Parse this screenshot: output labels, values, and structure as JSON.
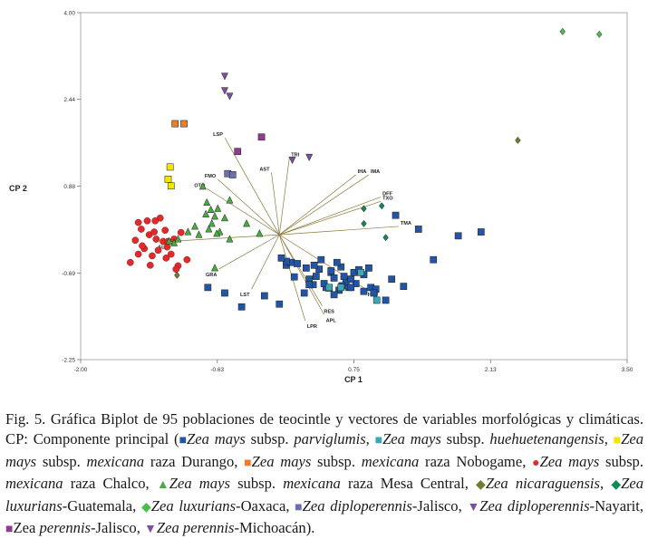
{
  "chart_data": {
    "type": "scatter",
    "title": "",
    "xlabel": "CP 1",
    "ylabel": "CP 2",
    "xlim": [
      -2.0,
      3.5
    ],
    "ylim": [
      -2.25,
      4.0
    ],
    "xticks": [
      "-2.00",
      "-0.63",
      "0.75",
      "2.13",
      "3.50"
    ],
    "yticks": [
      "-2.25",
      "-0.69",
      "0.88",
      "2.44",
      "4.00"
    ],
    "xtick_values": [
      -2.0,
      -0.625,
      0.75,
      2.125,
      3.5
    ],
    "ytick_values": [
      -2.25,
      -0.69,
      0.875,
      2.44,
      4.0
    ],
    "vectors": [
      {
        "label": "LSP",
        "x": -0.55,
        "y": 1.75
      },
      {
        "label": "FMO",
        "x": -0.62,
        "y": 1.0
      },
      {
        "label": "OTO",
        "x": -0.73,
        "y": 0.83
      },
      {
        "label": "AST",
        "x": -0.08,
        "y": 1.12
      },
      {
        "label": "TRI",
        "x": 0.1,
        "y": 1.38
      },
      {
        "label": "IHA",
        "x": 0.77,
        "y": 1.08
      },
      {
        "label": "IMA",
        "x": 0.9,
        "y": 1.08
      },
      {
        "label": "DFF",
        "x": 1.02,
        "y": 0.68
      },
      {
        "label": "TXO",
        "x": 1.02,
        "y": 0.6
      },
      {
        "label": "TMA",
        "x": 1.2,
        "y": 0.15
      },
      {
        "label": "ALT",
        "x": -1.11,
        "y": -0.12
      },
      {
        "label": "GRA",
        "x": -0.61,
        "y": -0.62
      },
      {
        "label": "LST",
        "x": -0.28,
        "y": -0.98
      },
      {
        "label": "HOJ",
        "x": 0.87,
        "y": -0.98
      },
      {
        "label": "RES",
        "x": 0.43,
        "y": -1.28
      },
      {
        "label": "APL",
        "x": 0.45,
        "y": -1.44
      },
      {
        "label": "LPR",
        "x": 0.26,
        "y": -1.55
      }
    ],
    "series": [
      {
        "name": "Zea mays subsp. parviglumis",
        "color": "#2255a5",
        "marker": "square",
        "x": [
          -0.72,
          -0.38,
          -0.55,
          -0.15,
          0.0,
          0.15,
          0.07,
          0.27,
          0.37,
          0.52,
          0.62,
          0.7,
          0.67,
          0.92,
          1.07,
          1.17,
          1.4,
          1.55,
          1.8,
          2.03,
          0.34,
          0.4,
          0.5,
          0.55,
          0.65,
          0.75,
          0.8,
          0.85,
          0.9,
          0.97,
          0.25,
          0.47,
          0.63,
          0.77,
          0.3,
          0.35,
          0.45,
          0.58,
          0.72,
          0.6,
          0.42,
          0.3,
          0.12,
          0.07,
          0.02,
          0.18,
          0.85,
          0.72,
          0.52,
          1.13,
          0.55,
          0.95,
          1.25
        ],
        "y": [
          -0.95,
          -1.3,
          -1.05,
          -1.1,
          -1.25,
          -0.76,
          -0.55,
          -0.6,
          -0.75,
          -0.68,
          -0.58,
          -0.95,
          -0.85,
          -0.95,
          -1.18,
          0.35,
          0.1,
          -0.45,
          -0.02,
          0.05,
          -0.9,
          -0.62,
          -0.96,
          -0.78,
          -0.75,
          -0.68,
          -0.63,
          -0.72,
          -0.6,
          -0.98,
          -1.05,
          -0.95,
          -0.92,
          -0.88,
          -0.8,
          -0.55,
          -0.88,
          -0.5,
          -0.95,
          -1.0,
          -0.45,
          -0.9,
          -0.5,
          -0.48,
          -0.42,
          -0.52,
          -1.02,
          -0.8,
          -0.65,
          -0.8,
          -1.08,
          -1.05,
          -0.93
        ]
      },
      {
        "name": "Zea mays subsp. huehuetenangensis",
        "color": "#3ba8b8",
        "marker": "square",
        "x": [
          0.5,
          0.62,
          0.82,
          0.98
        ],
        "y": [
          -0.95,
          -0.95,
          -0.68,
          -1.18
        ]
      },
      {
        "name": "Zea mays subsp. mexicana raza Durango",
        "color": "#f2e600",
        "marker": "square",
        "x": [
          -1.1,
          -1.12,
          -1.09
        ],
        "y": [
          1.22,
          1.0,
          0.88
        ]
      },
      {
        "name": "Zea mays subsp. mexicana raza Nobogame",
        "color": "#ef7b2e",
        "marker": "square",
        "x": [
          -1.05,
          -0.96
        ],
        "y": [
          2.0,
          2.0
        ]
      },
      {
        "name": "Zea mays subsp. mexicana raza Chalco",
        "color": "#e22a2a",
        "marker": "circle",
        "x": [
          -1.5,
          -1.42,
          -1.36,
          -1.28,
          -1.22,
          -1.14,
          -1.09,
          -1.02,
          -1.45,
          -1.38,
          -1.31,
          -1.24,
          -1.17,
          -1.13,
          -1.06,
          -0.99,
          -0.93,
          -1.39,
          -1.33,
          -1.26,
          -1.2,
          -1.25,
          -1.15,
          -1.42,
          -1.3,
          -1.12,
          -1.04
        ],
        "y": [
          -0.5,
          -0.35,
          -0.25,
          -0.38,
          -0.28,
          -0.42,
          -0.35,
          -0.56,
          -0.1,
          -0.2,
          0.0,
          -0.08,
          -0.12,
          -0.22,
          -0.08,
          0.04,
          -0.45,
          0.1,
          0.25,
          0.05,
          0.3,
          0.25,
          0.08,
          0.22,
          -0.55,
          -0.12,
          -0.62
        ]
      },
      {
        "name": "Zea mays subsp. mexicana raza Mesa Central",
        "color": "#4aaa42",
        "marker": "triangle",
        "x": [
          -0.77,
          -0.73,
          -0.74,
          -0.69,
          -0.65,
          -0.62,
          -0.55,
          -0.68,
          -0.71,
          -0.6,
          -0.5,
          -0.63,
          -0.81,
          -0.92,
          -0.85,
          -1.02,
          -1.11,
          -1.06,
          -0.5,
          -0.33,
          -0.65,
          -0.2
        ],
        "y": [
          0.87,
          0.58,
          0.37,
          0.45,
          0.33,
          0.47,
          0.3,
          0.2,
          0.1,
          0.05,
          0.62,
          0.02,
          0.0,
          0.05,
          0.15,
          -0.08,
          -0.12,
          -0.15,
          -0.08,
          0.2,
          -0.6,
          0.02
        ]
      },
      {
        "name": "Zea nicaraguensis",
        "color": "#6f7d2c",
        "marker": "diamond",
        "x": [
          2.4,
          -1.03
        ],
        "y": [
          1.7,
          -0.73
        ]
      },
      {
        "name": "Zea luxurians-Guatemala",
        "color": "#0e8c52",
        "marker": "diamond",
        "x": [
          0.85,
          1.03,
          1.07,
          0.85
        ],
        "y": [
          0.47,
          0.52,
          -0.05,
          0.2
        ]
      },
      {
        "name": "Zea luxurians-Oaxaca",
        "color": "#4cbd4c",
        "marker": "diamond",
        "x": [
          2.85,
          3.22
        ],
        "y": [
          3.66,
          3.61
        ]
      },
      {
        "name": "Zea diploperennis-Jalisco",
        "color": "#6a6fad",
        "marker": "square",
        "x": [
          -0.52,
          -0.47
        ],
        "y": [
          1.1,
          1.08
        ]
      },
      {
        "name": "Zea diploperennis-Nayarit",
        "color": "#7d4fa3",
        "marker": "triangle-down",
        "x": [
          -0.55,
          -0.55,
          -0.5,
          0.13,
          0.3
        ],
        "y": [
          2.86,
          2.6,
          2.5,
          1.35,
          1.4
        ]
      },
      {
        "name": "Zea perennis-Jalisco",
        "color": "#8e3c8e",
        "marker": "square",
        "x": [
          -0.42,
          -0.18
        ],
        "y": [
          1.5,
          1.76
        ]
      }
    ]
  },
  "caption": {
    "lead": "Fig. 5. Gráfica Biplot de 95 poblaciones de teocintle y vectores de variables morfológicas y climáticas. CP: Componente principal (",
    "items": [
      {
        "pre": "",
        "italic": "Zea mays",
        "mid": " subsp. ",
        "italic2": "parviglumis",
        "post": ", ",
        "marker": "square",
        "color": "#2255a5"
      },
      {
        "pre": "",
        "italic": "Zea mays",
        "mid": " subsp. ",
        "italic2": "huehuetenangensis",
        "post": ", ",
        "marker": "square",
        "color": "#3ba8b8"
      },
      {
        "pre": "",
        "italic": "Zea mays",
        "mid": " subsp. ",
        "italic2": "mexicana",
        "post": " raza Durango, ",
        "marker": "square",
        "color": "#f2e600"
      },
      {
        "pre": "",
        "italic": "Zea mays",
        "mid": " subsp. ",
        "italic2": "mexicana",
        "post": " raza Nobogame, ",
        "marker": "square",
        "color": "#ef7b2e"
      },
      {
        "pre": "",
        "italic": "Zea mays",
        "mid": " subsp. ",
        "italic2": "mexicana",
        "post": " raza Chalco, ",
        "marker": "circle",
        "color": "#e22a2a"
      },
      {
        "pre": "",
        "italic": "Zea mays",
        "mid": " subsp. ",
        "italic2": "mexicana",
        "post": " raza Mesa Central, ",
        "marker": "triangle",
        "color": "#4aaa42"
      },
      {
        "pre": "",
        "italic": "Zea nicaraguensis",
        "mid": ", ",
        "italic2": "",
        "post": "",
        "marker": "diamond",
        "color": "#6f7d2c"
      },
      {
        "pre": "",
        "italic": "Zea luxurians",
        "mid": "-Guatemala, ",
        "italic2": "",
        "post": "",
        "marker": "diamond",
        "color": "#0e8c52"
      },
      {
        "pre": "",
        "italic": "Zea luxurians",
        "mid": "-Oaxaca, ",
        "italic2": "",
        "post": "",
        "marker": "diamond",
        "color": "#4cbd4c"
      },
      {
        "pre": "",
        "italic": "Zea diploperennis",
        "mid": "-Jalisco, ",
        "italic2": "",
        "post": "",
        "marker": "square",
        "color": "#6a6fad"
      },
      {
        "pre": "",
        "italic": "Zea diploperennis",
        "mid": "-Nayarit, ",
        "italic2": "",
        "post": "",
        "marker": "triangle-down",
        "color": "#7d4fa3"
      },
      {
        "pre": "Zea ",
        "italic": "perennis",
        "mid": "-Jalisco, ",
        "italic2": "",
        "post": "",
        "marker": "square",
        "color": "#8e3c8e"
      },
      {
        "pre": "",
        "italic": "Zea perennis",
        "mid": "-Michoacán).",
        "italic2": "",
        "post": "",
        "marker": "triangle-down",
        "color": "#7d4fa3"
      }
    ]
  }
}
